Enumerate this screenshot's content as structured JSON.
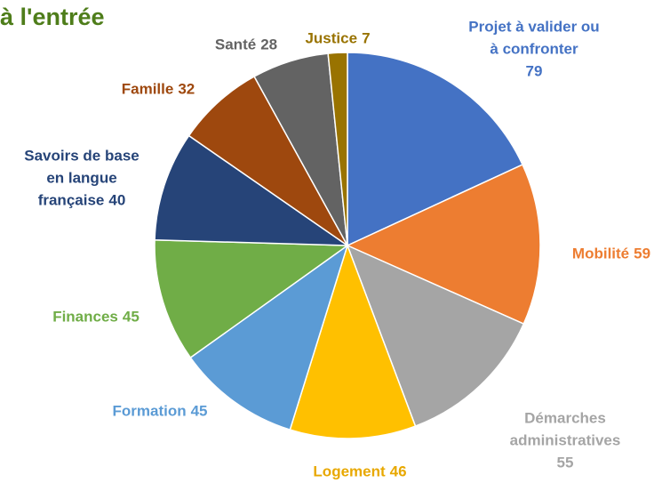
{
  "chart_data": {
    "type": "pie",
    "title": "à l'entrée",
    "categories": [
      "Projet à valider ou à confronter",
      "Mobilité",
      "Démarches administratives",
      "Logement",
      "Formation",
      "Finances",
      "Savoirs de base en langue française",
      "Famille",
      "Santé",
      "Justice"
    ],
    "values": [
      79,
      59,
      55,
      46,
      45,
      45,
      40,
      32,
      28,
      7
    ],
    "colors": [
      "#4472c4",
      "#ed7d31",
      "#a5a5a5",
      "#ffc000",
      "#5b9bd5",
      "#70ad47",
      "#264478",
      "#9e480e",
      "#636363",
      "#997300"
    ]
  }
}
